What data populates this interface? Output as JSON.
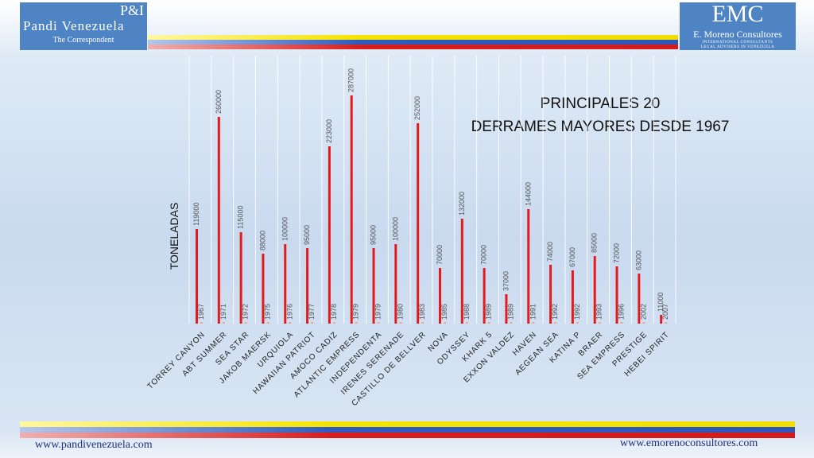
{
  "header": {
    "left_logo": {
      "top": "P&I",
      "name": "Pandi Venezuela",
      "sub": "The Correspondent"
    },
    "right_logo": {
      "top": "EMC",
      "name": "E. Moreno Consultores",
      "tag1": "INTERNATIONAL CONSULTANTS",
      "tag2": "LEGAL ADVISERS IN VENEZUELA"
    }
  },
  "footer": {
    "left_url": "www.pandivenezuela.com",
    "right_url": "www.emorenoconsultores.com"
  },
  "colors": {
    "bar": "#e41a1c",
    "year_bar": "#f4a582",
    "brand_blue": "#4f84c4"
  },
  "chart_data": {
    "type": "bar",
    "title_line1": "PRINCIPALES 20",
    "title_line2": "DERRAMES MAYORES DESDE 1967",
    "ylabel": "TONELADAS",
    "categories": [
      "TORREY CANYON",
      "ABT SUMMER",
      "SEA STAR",
      "JAKOB MAERSK",
      "URQUIOLA",
      "HAWAIIAN PATRIOT",
      "AMOCO CADIZ",
      "ATLANTIC EMPRESS",
      "INDEPENDENTA",
      "IRENES SERENADE",
      "CASTILLO DE BELLVER",
      "NOVA",
      "ODYSSEY",
      "KHARK 5",
      "EXXON VALDEZ",
      "HAVEN",
      "AEGEAN SEA",
      "KATINA P",
      "BRAER",
      "SEA EMPRESS",
      "PRESTIGE",
      "HEBEI SPIRIT"
    ],
    "series": [
      {
        "values": [
          119000,
          260000,
          115000,
          88000,
          100000,
          95000,
          223000,
          287000,
          95000,
          100000,
          252000,
          70000,
          132000,
          70000,
          37000,
          144000,
          74000,
          67000,
          85000,
          72000,
          63000,
          11000
        ]
      },
      {
        "values": [
          1967,
          1971,
          1972,
          1975,
          1976,
          1977,
          1978,
          1979,
          1979,
          1980,
          1983,
          1985,
          1988,
          1989,
          1989,
          1991,
          1992,
          1992,
          1993,
          1996,
          2002,
          2007
        ]
      }
    ],
    "ylim": [
      0,
      300000
    ],
    "grid": "vertical"
  }
}
